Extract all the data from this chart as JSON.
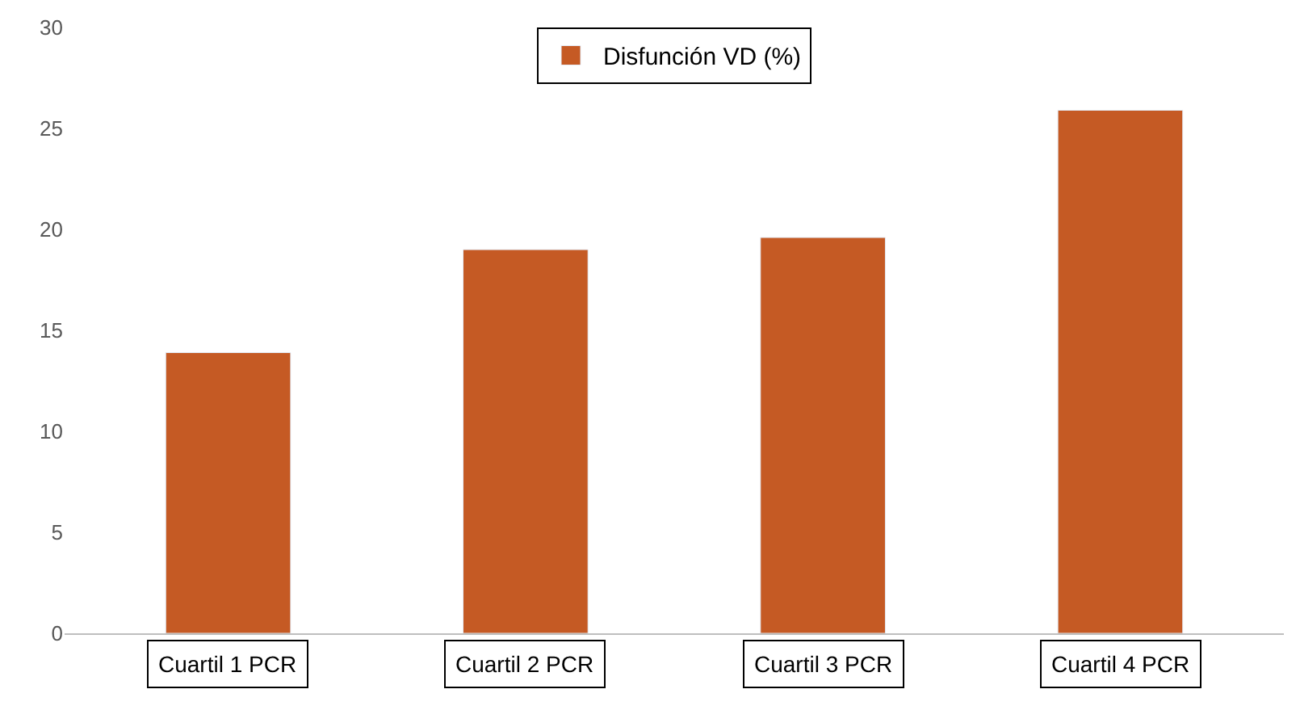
{
  "chart_data": {
    "type": "bar",
    "categories": [
      "Cuartil 1 PCR",
      "Cuartil 2 PCR",
      "Cuartil 3 PCR",
      "Cuartil 4 PCR"
    ],
    "series": [
      {
        "name": "Disfunción VD (%)",
        "color": "#c55a24",
        "values": [
          13.9,
          19.0,
          19.6,
          25.9
        ]
      }
    ],
    "ylim": [
      0,
      30
    ],
    "yticks": [
      0,
      5,
      10,
      15,
      20,
      25,
      30
    ],
    "grid": false,
    "legend": "top"
  }
}
